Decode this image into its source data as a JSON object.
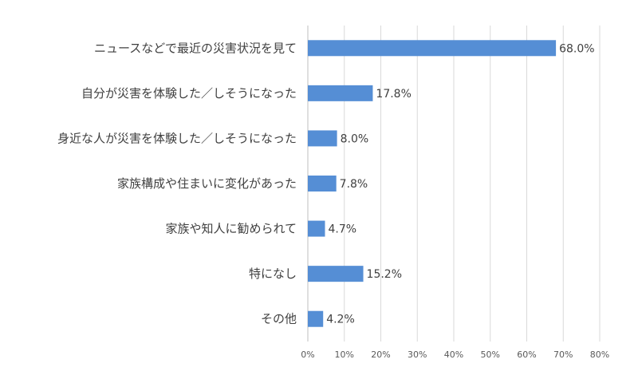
{
  "chart_data": {
    "type": "bar",
    "orientation": "horizontal",
    "categories": [
      "ニュースなどで最近の災害状況を見て",
      "自分が災害を体験した／しそうになった",
      "身近な人が災害を体験した／しそうになった",
      "家族構成や住まいに変化があった",
      "家族や知人に勧められて",
      "特になし",
      "その他"
    ],
    "values": [
      68.0,
      17.8,
      8.0,
      7.8,
      4.7,
      15.2,
      4.2
    ],
    "value_labels": [
      "68.0%",
      "17.8%",
      "8.0%",
      "7.8%",
      "4.7%",
      "15.2%",
      "4.2%"
    ],
    "xlim": [
      0,
      80
    ],
    "xticks": [
      0,
      10,
      20,
      30,
      40,
      50,
      60,
      70,
      80
    ],
    "xtick_labels": [
      "0%",
      "10%",
      "20%",
      "30%",
      "40%",
      "50%",
      "60%",
      "70%",
      "80%"
    ],
    "bar_color": "#558ed5",
    "grid": true
  }
}
